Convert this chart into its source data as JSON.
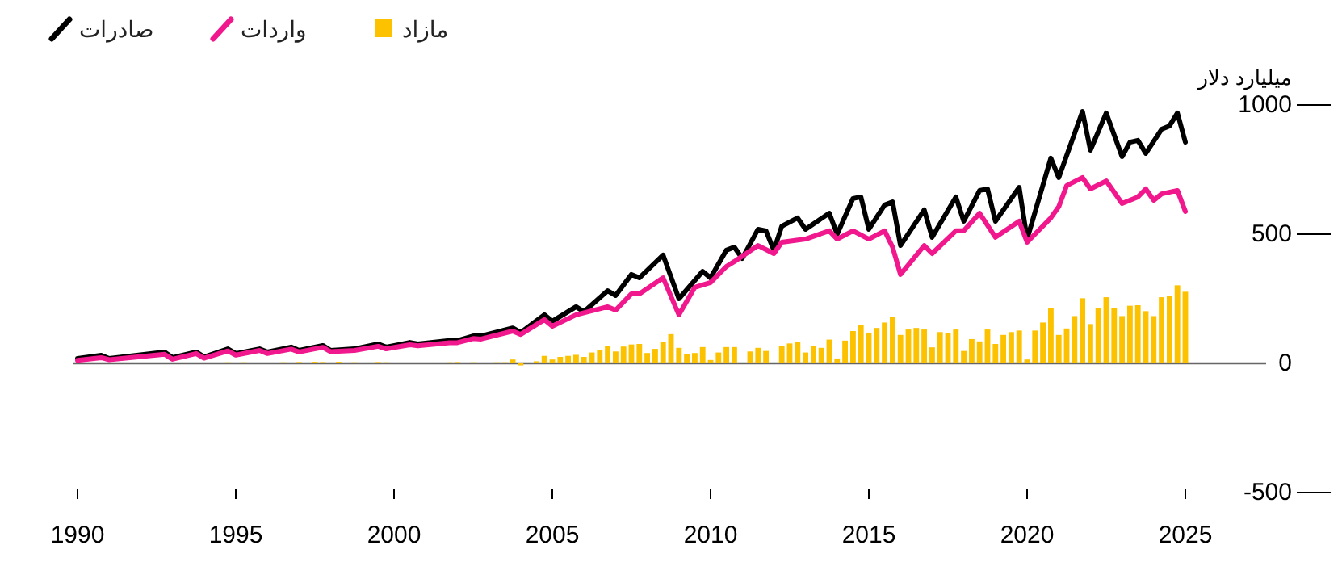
{
  "chart_data": {
    "type": "line",
    "ylabel": "میلیارد دلار",
    "xlim": [
      1990,
      2025
    ],
    "ylim": [
      -500,
      1000
    ],
    "yticks": [
      -500,
      0,
      500,
      1000
    ],
    "xticks": [
      1990,
      1995,
      2000,
      2005,
      2010,
      2015,
      2020,
      2025
    ],
    "legend": "top left",
    "series": [
      {
        "name": "صادرات",
        "color": "#000000",
        "x": [
          1990,
          1990.75,
          1991,
          1992.75,
          1993,
          1993.75,
          1994,
          1994.75,
          1995,
          1995.75,
          1996,
          1996.75,
          1997,
          1997.75,
          1998,
          1998.75,
          1999.5,
          1999.75,
          2000.5,
          2000.75,
          2001.75,
          2002,
          2002.5,
          2002.75,
          2003.75,
          2004,
          2004.75,
          2005,
          2005.75,
          2006,
          2006.75,
          2007,
          2007.5,
          2007.75,
          2008.5,
          2009,
          2009.75,
          2010,
          2010.5,
          2010.75,
          2011,
          2011.5,
          2011.75,
          2012,
          2012.25,
          2012.75,
          2013,
          2013.75,
          2014,
          2014.5,
          2014.75,
          2015,
          2015.5,
          2015.75,
          2016,
          2016.75,
          2017,
          2017.75,
          2018,
          2018.5,
          2018.75,
          2019,
          2019.75,
          2020,
          2020.75,
          2021,
          2021.75,
          2022,
          2022.5,
          2023,
          2023.25,
          2023.5,
          2023.75,
          2024.25,
          2024.5,
          2024.75,
          2025
        ],
        "values": [
          19,
          31,
          19,
          44,
          22,
          44,
          25,
          56,
          38,
          56,
          44,
          63,
          50,
          69,
          50,
          56,
          75,
          63,
          81,
          75,
          88,
          88,
          106,
          106,
          137,
          119,
          188,
          163,
          219,
          200,
          281,
          263,
          344,
          331,
          419,
          250,
          356,
          331,
          438,
          450,
          406,
          519,
          513,
          438,
          531,
          563,
          519,
          581,
          500,
          638,
          644,
          519,
          613,
          625,
          456,
          594,
          488,
          644,
          550,
          669,
          675,
          550,
          681,
          481,
          794,
          719,
          975,
          825,
          969,
          800,
          856,
          863,
          813,
          906,
          919,
          969,
          856
        ]
      },
      {
        "name": "واردات",
        "color": "#f0188c",
        "x": [
          1990,
          1990.75,
          1991,
          1992.75,
          1993,
          1993.75,
          1994,
          1994.75,
          1995,
          1995.75,
          1996,
          1996.75,
          1997,
          1997.75,
          1998,
          1998.75,
          1999.5,
          1999.75,
          2000.5,
          2000.75,
          2001.75,
          2002,
          2002.5,
          2002.75,
          2003.75,
          2004,
          2004.75,
          2005,
          2005.75,
          2006.75,
          2007,
          2007.5,
          2007.75,
          2008.5,
          2009,
          2009.5,
          2010,
          2010.5,
          2010.75,
          2011.5,
          2012,
          2012.25,
          2013,
          2013.75,
          2014,
          2014.5,
          2015,
          2015.5,
          2015.75,
          2016,
          2016.75,
          2017,
          2017.75,
          2018,
          2018.5,
          2019,
          2019.75,
          2020,
          2020.75,
          2021,
          2021.25,
          2021.75,
          2022,
          2022.5,
          2023,
          2023.5,
          2023.75,
          2024,
          2024.25,
          2024.75,
          2025
        ],
        "values": [
          12,
          22,
          14,
          35,
          16,
          38,
          20,
          48,
          32,
          50,
          38,
          55,
          44,
          62,
          45,
          50,
          66,
          56,
          72,
          68,
          80,
          80,
          96,
          94,
          125,
          112,
          169,
          144,
          188,
          219,
          206,
          269,
          269,
          331,
          188,
          294,
          313,
          375,
          394,
          456,
          425,
          469,
          481,
          513,
          481,
          513,
          481,
          513,
          450,
          344,
          456,
          425,
          513,
          513,
          581,
          488,
          550,
          469,
          563,
          606,
          688,
          719,
          675,
          706,
          619,
          644,
          675,
          631,
          656,
          669,
          588
        ]
      },
      {
        "name": "مازاد",
        "type": "bar",
        "color": "#fcc200",
        "x": [
          1993.5,
          1993.75,
          1994.75,
          1995,
          1995.25,
          1996.5,
          1997,
          1997.5,
          1997.75,
          1998.25,
          1998.75,
          1999.5,
          1999.75,
          2001.75,
          2002,
          2002.5,
          2002.75,
          2003.25,
          2003.5,
          2003.75,
          2004,
          2004.25,
          2004.5,
          2004.75,
          2005,
          2005.25,
          2005.5,
          2005.75,
          2006,
          2006.25,
          2006.5,
          2006.75,
          2007,
          2007.25,
          2007.5,
          2007.75,
          2008,
          2008.25,
          2008.5,
          2008.75,
          2009,
          2009.25,
          2009.5,
          2009.75,
          2010,
          2010.25,
          2010.5,
          2010.75,
          2011,
          2011.25,
          2011.5,
          2011.75,
          2012,
          2012.25,
          2012.5,
          2012.75,
          2013,
          2013.25,
          2013.5,
          2013.75,
          2014,
          2014.25,
          2014.5,
          2014.75,
          2015,
          2015.25,
          2015.5,
          2015.75,
          2016,
          2016.25,
          2016.5,
          2016.75,
          2017,
          2017.25,
          2017.5,
          2017.75,
          2018,
          2018.25,
          2018.5,
          2018.75,
          2019,
          2019.25,
          2019.5,
          2019.75,
          2020,
          2020.25,
          2020.5,
          2020.75,
          2021,
          2021.25,
          2021.5,
          2021.75,
          2022,
          2022.25,
          2022.5,
          2022.75,
          2023,
          2023.25,
          2023.5,
          2023.75,
          2024,
          2024.25,
          2024.5,
          2024.75,
          2025
        ],
        "values": [
          3,
          3,
          4,
          3,
          4,
          4,
          5,
          6,
          5,
          6,
          4,
          5,
          4,
          4,
          5,
          4,
          3,
          4,
          4,
          15,
          -8,
          0,
          8,
          29,
          15,
          25,
          29,
          33,
          25,
          42,
          50,
          67,
          46,
          65,
          73,
          75,
          40,
          56,
          83,
          113,
          60,
          35,
          40,
          63,
          13,
          42,
          63,
          63,
          0,
          46,
          60,
          48,
          0,
          67,
          77,
          83,
          42,
          67,
          60,
          92,
          19,
          88,
          125,
          150,
          119,
          137,
          158,
          179,
          110,
          131,
          137,
          131,
          62,
          121,
          117,
          131,
          48,
          94,
          85,
          131,
          75,
          110,
          121,
          127,
          15,
          127,
          158,
          215,
          110,
          135,
          183,
          252,
          152,
          215,
          256,
          215,
          183,
          223,
          225,
          202,
          183,
          256,
          260,
          302,
          277
        ]
      }
    ]
  }
}
